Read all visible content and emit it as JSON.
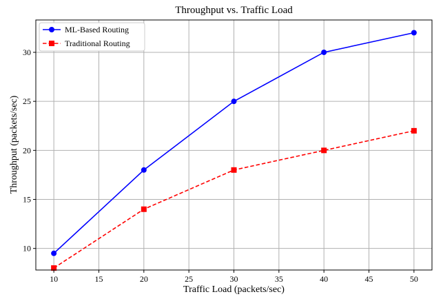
{
  "chart_data": {
    "type": "line",
    "title": "Throughput vs. Traffic Load",
    "xlabel": "Traffic Load (packets/sec)",
    "ylabel": "Throughput (packets/sec)",
    "x": [
      10,
      20,
      30,
      40,
      50
    ],
    "xlim": [
      8,
      52
    ],
    "ylim": [
      7.8,
      33.3
    ],
    "xticks": [
      10,
      15,
      20,
      25,
      30,
      35,
      40,
      45,
      50
    ],
    "yticks": [
      10,
      15,
      20,
      25,
      30
    ],
    "grid": true,
    "legend_position": "top-left",
    "series": [
      {
        "name": "ML-Based Routing",
        "values": [
          9.5,
          18,
          25,
          30,
          32
        ],
        "color": "#0000ff",
        "marker": "circle",
        "linestyle": "solid"
      },
      {
        "name": "Traditional Routing",
        "values": [
          8,
          14,
          18,
          20,
          22
        ],
        "color": "#ff0000",
        "marker": "square",
        "linestyle": "dashed"
      }
    ]
  }
}
